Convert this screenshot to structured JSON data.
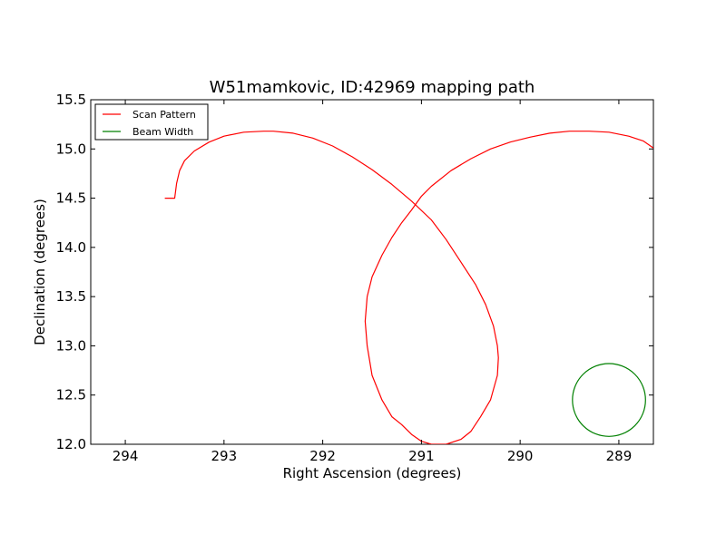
{
  "chart_data": {
    "type": "line",
    "title": "W51mamkovic, ID:42969 mapping path",
    "xlabel": "Right Ascension (degrees)",
    "ylabel": "Declination (degrees)",
    "xlim": [
      294.35,
      288.65
    ],
    "ylim": [
      12.0,
      15.5
    ],
    "x_inverted": true,
    "xticks": [
      294,
      293,
      292,
      291,
      290,
      289
    ],
    "yticks": [
      12.0,
      12.5,
      13.0,
      13.5,
      14.0,
      14.5,
      15.0,
      15.5
    ],
    "xtick_labels": [
      "294",
      "293",
      "292",
      "291",
      "290",
      "289"
    ],
    "ytick_labels": [
      "12.0",
      "12.5",
      "13.0",
      "13.5",
      "14.0",
      "14.5",
      "15.0",
      "15.5"
    ],
    "grid": false,
    "legend_position": "top-left",
    "series": [
      {
        "name": "Scan Pattern",
        "color": "#ff0000",
        "x": [
          293.6,
          293.5,
          293.48,
          293.45,
          293.4,
          293.3,
          293.15,
          293.0,
          292.8,
          292.6,
          292.5,
          292.3,
          292.1,
          291.9,
          291.7,
          291.5,
          291.3,
          291.1,
          290.9,
          290.75,
          290.6,
          290.45,
          290.35,
          290.27,
          290.23,
          290.22,
          290.23,
          290.3,
          290.4,
          290.5,
          290.6,
          290.75,
          290.9,
          291.0,
          291.1,
          291.2,
          291.3,
          291.4,
          291.5,
          291.55,
          291.57,
          291.55,
          291.5,
          291.4,
          291.3,
          291.2,
          291.1,
          291.0,
          290.9,
          290.7,
          290.5,
          290.3,
          290.1,
          289.9,
          289.7,
          289.5,
          289.3,
          289.1,
          288.9,
          288.75,
          288.65
        ],
        "y": [
          14.5,
          14.5,
          14.65,
          14.78,
          14.88,
          14.98,
          15.07,
          15.13,
          15.17,
          15.18,
          15.18,
          15.16,
          15.11,
          15.03,
          14.92,
          14.79,
          14.64,
          14.47,
          14.28,
          14.08,
          13.85,
          13.62,
          13.42,
          13.2,
          13.0,
          12.88,
          12.7,
          12.45,
          12.28,
          12.13,
          12.05,
          12.0,
          12.0,
          12.03,
          12.1,
          12.2,
          12.28,
          12.45,
          12.7,
          13.0,
          13.25,
          13.5,
          13.7,
          13.92,
          14.1,
          14.25,
          14.38,
          14.52,
          14.62,
          14.78,
          14.9,
          15.0,
          15.07,
          15.12,
          15.16,
          15.18,
          15.18,
          15.17,
          15.13,
          15.08,
          15.01
        ]
      },
      {
        "name": "Beam Width",
        "color": "#008000",
        "shape": "circle",
        "center": [
          289.1,
          12.45
        ],
        "radius_deg": 0.37
      }
    ],
    "legend": [
      {
        "label": "Scan Pattern",
        "color": "#ff0000"
      },
      {
        "label": "Beam Width",
        "color": "#008000"
      }
    ]
  }
}
